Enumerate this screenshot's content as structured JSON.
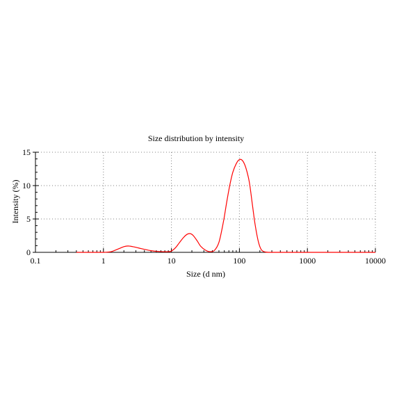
{
  "chart_data": {
    "type": "line",
    "title": "Size distribution by intensity",
    "xlabel": "Size (d nm)",
    "ylabel": "Intensity (%)",
    "xscale": "log",
    "xlim": [
      0.1,
      10000
    ],
    "ylim": [
      0,
      15
    ],
    "x_ticks": [
      0.1,
      1,
      10,
      100,
      1000,
      10000
    ],
    "x_tick_labels": [
      "0.1",
      "1",
      "10",
      "100",
      "1000",
      "10000"
    ],
    "y_ticks": [
      0,
      5,
      10,
      15
    ],
    "y_tick_labels": [
      "0",
      "5",
      "10",
      "15"
    ],
    "grid": true,
    "series": [
      {
        "color": "#ff0000",
        "x": [
          0.4,
          0.7,
          1.0,
          1.3,
          1.6,
          2.0,
          2.3,
          2.7,
          3.3,
          4.0,
          5.0,
          6.0,
          7.5,
          9.0,
          10.0,
          11.5,
          13.0,
          15.0,
          17.0,
          19.0,
          21.0,
          24.0,
          27.0,
          32.0,
          37.0,
          43.0,
          50.0,
          58.0,
          65.0,
          72.0,
          80.0,
          90.0,
          100.0,
          112.0,
          125.0,
          140.0,
          155.0,
          170.0,
          190.0,
          210.0,
          240.0,
          280.0,
          400.0,
          1000.0,
          10000.0
        ],
        "y": [
          0,
          0,
          0,
          0.1,
          0.45,
          0.85,
          0.95,
          0.85,
          0.65,
          0.45,
          0.25,
          0.15,
          0.1,
          0.1,
          0.2,
          0.7,
          1.4,
          2.2,
          2.7,
          2.8,
          2.5,
          1.7,
          0.9,
          0.3,
          0.1,
          0.3,
          1.5,
          4.5,
          7.5,
          10.0,
          12.0,
          13.3,
          13.9,
          13.7,
          12.6,
          10.5,
          7.2,
          4.2,
          1.6,
          0.4,
          0.05,
          0,
          0,
          0,
          0
        ]
      }
    ]
  }
}
